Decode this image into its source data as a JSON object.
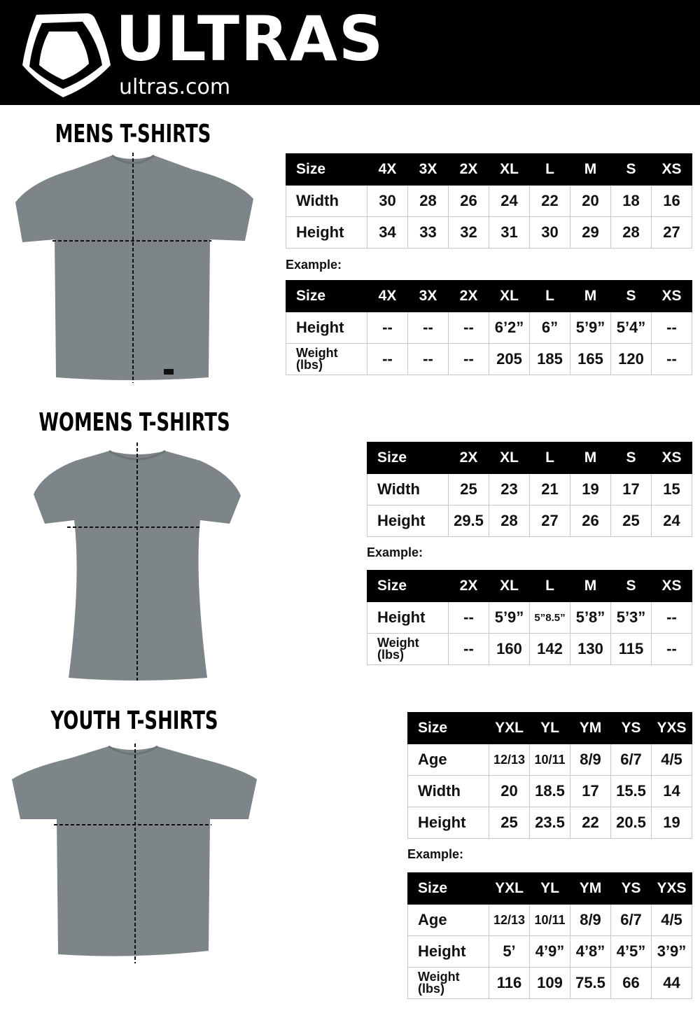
{
  "header": {
    "brand": "ULTRAS",
    "domain": "ultras.com",
    "background": "#000000"
  },
  "example_label": "Example:",
  "sections": [
    {
      "title": "MENS T-SHIRTS",
      "size_table": {
        "header": [
          "Size",
          "4X",
          "3X",
          "2X",
          "XL",
          "L",
          "M",
          "S",
          "XS"
        ],
        "rows": [
          [
            "Width",
            "30",
            "28",
            "26",
            "24",
            "22",
            "20",
            "18",
            "16"
          ],
          [
            "Height",
            "34",
            "33",
            "32",
            "31",
            "30",
            "29",
            "28",
            "27"
          ]
        ]
      },
      "example_table": {
        "header": [
          "Size",
          "4X",
          "3X",
          "2X",
          "XL",
          "L",
          "M",
          "S",
          "XS"
        ],
        "rows": [
          [
            "Height",
            "--",
            "--",
            "--",
            "6’2”",
            "6”",
            "5’9”",
            "5’4”",
            "--"
          ],
          [
            "Weight (lbs)",
            "--",
            "--",
            "--",
            "205",
            "185",
            "165",
            "120",
            "--"
          ]
        ]
      }
    },
    {
      "title": "WOMENS T-SHIRTS",
      "size_table": {
        "header": [
          "Size",
          "2X",
          "XL",
          "L",
          "M",
          "S",
          "XS"
        ],
        "rows": [
          [
            "Width",
            "25",
            "23",
            "21",
            "19",
            "17",
            "15"
          ],
          [
            "Height",
            "29.5",
            "28",
            "27",
            "26",
            "25",
            "24"
          ]
        ]
      },
      "example_table": {
        "header": [
          "Size",
          "2X",
          "XL",
          "L",
          "M",
          "S",
          "XS"
        ],
        "rows": [
          [
            "Height",
            "--",
            "5’9”",
            "5”8.5”",
            "5’8”",
            "5’3”",
            "--"
          ],
          [
            "Weight (lbs)",
            "--",
            "160",
            "142",
            "130",
            "115",
            "--"
          ]
        ]
      }
    },
    {
      "title": "YOUTH T-SHIRTS",
      "size_table": {
        "header": [
          "Size",
          "YXL",
          "YL",
          "YM",
          "YS",
          "YXS"
        ],
        "rows": [
          [
            "Age",
            "12/13",
            "10/11",
            "8/9",
            "6/7",
            "4/5"
          ],
          [
            "Width",
            "20",
            "18.5",
            "17",
            "15.5",
            "14"
          ],
          [
            "Height",
            "25",
            "23.5",
            "22",
            "20.5",
            "19"
          ]
        ]
      },
      "example_table": {
        "header": [
          "Size",
          "YXL",
          "YL",
          "YM",
          "YS",
          "YXS"
        ],
        "rows": [
          [
            "Age",
            "12/13",
            "10/11",
            "8/9",
            "6/7",
            "4/5"
          ],
          [
            "Height",
            "5’",
            "4’9”",
            "4’8”",
            "4’5”",
            "3’9”"
          ],
          [
            "Weight (lbs)",
            "116",
            "109",
            "75.5",
            "66",
            "44"
          ]
        ]
      }
    }
  ]
}
